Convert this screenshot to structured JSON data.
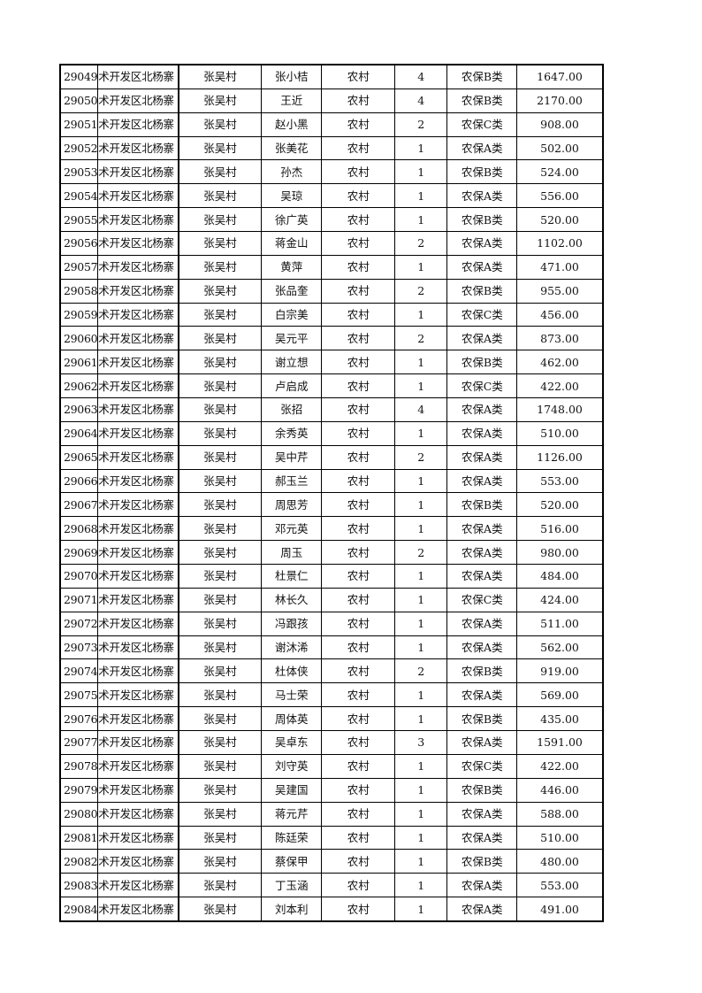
{
  "table": {
    "rows": [
      [
        "29049",
        "术开发区北杨寨",
        "张吴村",
        "张小桔",
        "农村",
        "4",
        "农保B类",
        "1647.00"
      ],
      [
        "29050",
        "术开发区北杨寨",
        "张吴村",
        "王近",
        "农村",
        "4",
        "农保B类",
        "2170.00"
      ],
      [
        "29051",
        "术开发区北杨寨",
        "张吴村",
        "赵小黑",
        "农村",
        "2",
        "农保C类",
        "908.00"
      ],
      [
        "29052",
        "术开发区北杨寨",
        "张吴村",
        "张美花",
        "农村",
        "1",
        "农保A类",
        "502.00"
      ],
      [
        "29053",
        "术开发区北杨寨",
        "张吴村",
        "孙杰",
        "农村",
        "1",
        "农保B类",
        "524.00"
      ],
      [
        "29054",
        "术开发区北杨寨",
        "张吴村",
        "吴琼",
        "农村",
        "1",
        "农保A类",
        "556.00"
      ],
      [
        "29055",
        "术开发区北杨寨",
        "张吴村",
        "徐广英",
        "农村",
        "1",
        "农保B类",
        "520.00"
      ],
      [
        "29056",
        "术开发区北杨寨",
        "张吴村",
        "蒋金山",
        "农村",
        "2",
        "农保A类",
        "1102.00"
      ],
      [
        "29057",
        "术开发区北杨寨",
        "张吴村",
        "黄萍",
        "农村",
        "1",
        "农保A类",
        "471.00"
      ],
      [
        "29058",
        "术开发区北杨寨",
        "张吴村",
        "张品奎",
        "农村",
        "2",
        "农保B类",
        "955.00"
      ],
      [
        "29059",
        "术开发区北杨寨",
        "张吴村",
        "白宗美",
        "农村",
        "1",
        "农保C类",
        "456.00"
      ],
      [
        "29060",
        "术开发区北杨寨",
        "张吴村",
        "吴元平",
        "农村",
        "2",
        "农保A类",
        "873.00"
      ],
      [
        "29061",
        "术开发区北杨寨",
        "张吴村",
        "谢立想",
        "农村",
        "1",
        "农保B类",
        "462.00"
      ],
      [
        "29062",
        "术开发区北杨寨",
        "张吴村",
        "卢启成",
        "农村",
        "1",
        "农保C类",
        "422.00"
      ],
      [
        "29063",
        "术开发区北杨寨",
        "张吴村",
        "张招",
        "农村",
        "4",
        "农保A类",
        "1748.00"
      ],
      [
        "29064",
        "术开发区北杨寨",
        "张吴村",
        "余秀英",
        "农村",
        "1",
        "农保A类",
        "510.00"
      ],
      [
        "29065",
        "术开发区北杨寨",
        "张吴村",
        "吴中芹",
        "农村",
        "2",
        "农保A类",
        "1126.00"
      ],
      [
        "29066",
        "术开发区北杨寨",
        "张吴村",
        "郝玉兰",
        "农村",
        "1",
        "农保A类",
        "553.00"
      ],
      [
        "29067",
        "术开发区北杨寨",
        "张吴村",
        "周思芳",
        "农村",
        "1",
        "农保B类",
        "520.00"
      ],
      [
        "29068",
        "术开发区北杨寨",
        "张吴村",
        "邓元英",
        "农村",
        "1",
        "农保A类",
        "516.00"
      ],
      [
        "29069",
        "术开发区北杨寨",
        "张吴村",
        "周玉",
        "农村",
        "2",
        "农保A类",
        "980.00"
      ],
      [
        "29070",
        "术开发区北杨寨",
        "张吴村",
        "杜景仁",
        "农村",
        "1",
        "农保A类",
        "484.00"
      ],
      [
        "29071",
        "术开发区北杨寨",
        "张吴村",
        "林长久",
        "农村",
        "1",
        "农保C类",
        "424.00"
      ],
      [
        "29072",
        "术开发区北杨寨",
        "张吴村",
        "冯跟孩",
        "农村",
        "1",
        "农保A类",
        "511.00"
      ],
      [
        "29073",
        "术开发区北杨寨",
        "张吴村",
        "谢沐浠",
        "农村",
        "1",
        "农保A类",
        "562.00"
      ],
      [
        "29074",
        "术开发区北杨寨",
        "张吴村",
        "杜体侠",
        "农村",
        "2",
        "农保B类",
        "919.00"
      ],
      [
        "29075",
        "术开发区北杨寨",
        "张吴村",
        "马士荣",
        "农村",
        "1",
        "农保A类",
        "569.00"
      ],
      [
        "29076",
        "术开发区北杨寨",
        "张吴村",
        "周体英",
        "农村",
        "1",
        "农保B类",
        "435.00"
      ],
      [
        "29077",
        "术开发区北杨寨",
        "张吴村",
        "吴卓东",
        "农村",
        "3",
        "农保A类",
        "1591.00"
      ],
      [
        "29078",
        "术开发区北杨寨",
        "张吴村",
        "刘守英",
        "农村",
        "1",
        "农保C类",
        "422.00"
      ],
      [
        "29079",
        "术开发区北杨寨",
        "张吴村",
        "吴建国",
        "农村",
        "1",
        "农保B类",
        "446.00"
      ],
      [
        "29080",
        "术开发区北杨寨",
        "张吴村",
        "蒋元芹",
        "农村",
        "1",
        "农保A类",
        "588.00"
      ],
      [
        "29081",
        "术开发区北杨寨",
        "张吴村",
        "陈廷荣",
        "农村",
        "1",
        "农保A类",
        "510.00"
      ],
      [
        "29082",
        "术开发区北杨寨",
        "张吴村",
        "蔡保甲",
        "农村",
        "1",
        "农保B类",
        "480.00"
      ],
      [
        "29083",
        "术开发区北杨寨",
        "张吴村",
        "丁玉涵",
        "农村",
        "1",
        "农保A类",
        "553.00"
      ],
      [
        "29084",
        "术开发区北杨寨",
        "张吴村",
        "刘本利",
        "农村",
        "1",
        "农保A类",
        "491.00"
      ]
    ]
  }
}
